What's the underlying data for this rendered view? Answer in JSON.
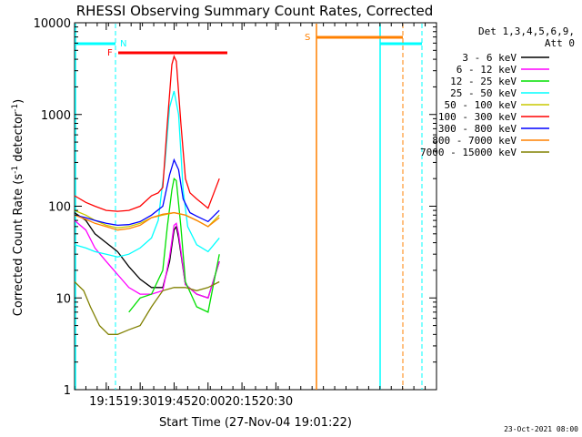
{
  "chart_data": {
    "type": "line",
    "title": "RHESSI Observing Summary Count Rates, Corrected",
    "xlabel": "Start Time (27-Nov-04 19:01:22)",
    "ylabel_main": "Corrected Count Rate (s",
    "ylabel_sup1": "-1",
    "ylabel_mid": " detector",
    "ylabel_sup2": "-1",
    "ylabel_end": ")",
    "yscale": "log",
    "ylim": [
      1,
      10000
    ],
    "xlim_min": [
      1141,
      1301
    ],
    "x_ticks": [
      {
        "t": 1155,
        "label": "19:15"
      },
      {
        "t": 1170,
        "label": "19:30"
      },
      {
        "t": 1185,
        "label": "19:45"
      },
      {
        "t": 1200,
        "label": "20:00"
      },
      {
        "t": 1215,
        "label": "20:15"
      },
      {
        "t": 1230,
        "label": "20:30"
      }
    ],
    "y_ticks": [
      {
        "v": 1,
        "label": "1"
      },
      {
        "v": 10,
        "label": "10"
      },
      {
        "v": 100,
        "label": "100"
      },
      {
        "v": 1000,
        "label": "1000"
      },
      {
        "v": 10000,
        "label": "10000"
      }
    ],
    "legend_header": [
      "Det 1,3,4,5,6,9,",
      "Att 0"
    ],
    "legend_position": "right",
    "series": [
      {
        "name": "3 - 6 keV",
        "color": "#000000",
        "points": [
          [
            1141,
            85
          ],
          [
            1146,
            70
          ],
          [
            1150,
            50
          ],
          [
            1155,
            40
          ],
          [
            1160,
            32
          ],
          [
            1165,
            22
          ],
          [
            1170,
            16
          ],
          [
            1175,
            13
          ],
          [
            1180,
            13
          ],
          [
            1183,
            25
          ],
          [
            1185,
            55
          ],
          [
            1186,
            60
          ],
          [
            1187,
            45
          ],
          [
            1190,
            14
          ],
          [
            1195,
            11
          ],
          [
            1200,
            10
          ],
          [
            1205,
            25
          ]
        ]
      },
      {
        "name": "6 - 12 keV",
        "color": "#ff00ff",
        "points": [
          [
            1141,
            70
          ],
          [
            1146,
            55
          ],
          [
            1150,
            35
          ],
          [
            1155,
            25
          ],
          [
            1160,
            18
          ],
          [
            1165,
            13
          ],
          [
            1170,
            11
          ],
          [
            1175,
            11
          ],
          [
            1180,
            12
          ],
          [
            1183,
            28
          ],
          [
            1185,
            62
          ],
          [
            1186,
            65
          ],
          [
            1187,
            50
          ],
          [
            1190,
            14
          ],
          [
            1195,
            11
          ],
          [
            1200,
            10
          ],
          [
            1205,
            25
          ]
        ]
      },
      {
        "name": "12 - 25 keV",
        "color": "#00e000",
        "points": [
          [
            1165,
            7
          ],
          [
            1170,
            10
          ],
          [
            1175,
            11
          ],
          [
            1180,
            20
          ],
          [
            1182,
            60
          ],
          [
            1184,
            150
          ],
          [
            1185,
            200
          ],
          [
            1186,
            190
          ],
          [
            1188,
            60
          ],
          [
            1190,
            15
          ],
          [
            1195,
            8
          ],
          [
            1200,
            7
          ],
          [
            1205,
            30
          ]
        ]
      },
      {
        "name": "25 - 50 keV",
        "color": "#00ffff",
        "points": [
          [
            1141,
            38
          ],
          [
            1146,
            35
          ],
          [
            1150,
            32
          ],
          [
            1155,
            30
          ],
          [
            1160,
            28
          ],
          [
            1165,
            30
          ],
          [
            1170,
            35
          ],
          [
            1175,
            45
          ],
          [
            1178,
            70
          ],
          [
            1181,
            300
          ],
          [
            1183,
            1200
          ],
          [
            1185,
            1800
          ],
          [
            1187,
            1000
          ],
          [
            1189,
            150
          ],
          [
            1191,
            60
          ],
          [
            1195,
            38
          ],
          [
            1200,
            32
          ],
          [
            1205,
            45
          ]
        ]
      },
      {
        "name": "50 - 100 keV",
        "color": "#c8c800",
        "points": [
          [
            1141,
            90
          ],
          [
            1146,
            80
          ],
          [
            1150,
            70
          ],
          [
            1155,
            62
          ],
          [
            1160,
            58
          ],
          [
            1165,
            60
          ],
          [
            1170,
            65
          ],
          [
            1175,
            75
          ],
          [
            1180,
            80
          ],
          [
            1185,
            85
          ],
          [
            1190,
            80
          ],
          [
            1195,
            70
          ],
          [
            1200,
            60
          ],
          [
            1205,
            80
          ]
        ]
      },
      {
        "name": "100 - 300 keV",
        "color": "#ff0000",
        "points": [
          [
            1141,
            130
          ],
          [
            1146,
            110
          ],
          [
            1150,
            100
          ],
          [
            1155,
            90
          ],
          [
            1160,
            88
          ],
          [
            1165,
            90
          ],
          [
            1170,
            100
          ],
          [
            1175,
            130
          ],
          [
            1178,
            140
          ],
          [
            1180,
            160
          ],
          [
            1182,
            800
          ],
          [
            1184,
            3500
          ],
          [
            1185,
            4300
          ],
          [
            1186,
            3800
          ],
          [
            1188,
            800
          ],
          [
            1190,
            200
          ],
          [
            1192,
            140
          ],
          [
            1195,
            120
          ],
          [
            1200,
            95
          ],
          [
            1205,
            200
          ]
        ]
      },
      {
        "name": "300 - 800 keV",
        "color": "#0000ff",
        "points": [
          [
            1141,
            80
          ],
          [
            1146,
            75
          ],
          [
            1150,
            70
          ],
          [
            1155,
            65
          ],
          [
            1160,
            62
          ],
          [
            1165,
            63
          ],
          [
            1170,
            68
          ],
          [
            1175,
            80
          ],
          [
            1180,
            100
          ],
          [
            1183,
            220
          ],
          [
            1185,
            320
          ],
          [
            1187,
            250
          ],
          [
            1189,
            120
          ],
          [
            1192,
            85
          ],
          [
            1195,
            78
          ],
          [
            1200,
            68
          ],
          [
            1205,
            90
          ]
        ]
      },
      {
        "name": "800 - 7000 keV",
        "color": "#ff8000",
        "points": [
          [
            1141,
            80
          ],
          [
            1146,
            72
          ],
          [
            1150,
            65
          ],
          [
            1155,
            60
          ],
          [
            1160,
            55
          ],
          [
            1165,
            57
          ],
          [
            1170,
            62
          ],
          [
            1175,
            75
          ],
          [
            1180,
            82
          ],
          [
            1185,
            85
          ],
          [
            1190,
            80
          ],
          [
            1195,
            70
          ],
          [
            1200,
            60
          ],
          [
            1205,
            75
          ]
        ]
      },
      {
        "name": "7000 - 15000 keV",
        "color": "#808000",
        "points": [
          [
            1141,
            15
          ],
          [
            1145,
            12
          ],
          [
            1148,
            8
          ],
          [
            1152,
            5
          ],
          [
            1156,
            4
          ],
          [
            1160,
            4
          ],
          [
            1165,
            4.5
          ],
          [
            1170,
            5
          ],
          [
            1175,
            8
          ],
          [
            1180,
            12
          ],
          [
            1185,
            13
          ],
          [
            1190,
            13
          ],
          [
            1195,
            12
          ],
          [
            1200,
            13
          ],
          [
            1205,
            15
          ]
        ]
      }
    ],
    "annotations": [
      {
        "label": "N",
        "color": "#00ffff"
      },
      {
        "label": "F",
        "color": "#ff0000"
      },
      {
        "label": "S",
        "color": "#ff8000"
      }
    ]
  },
  "timestamp": "23-Oct-2021 08:00"
}
